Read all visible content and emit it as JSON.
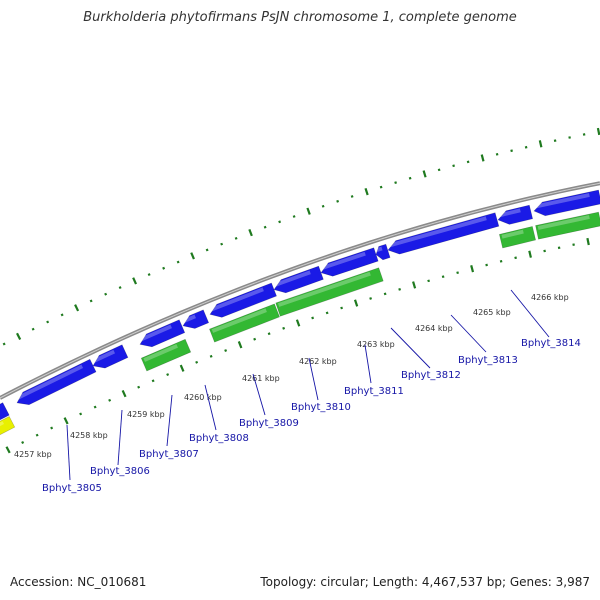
{
  "title": "Burkholderia phytofirmans PsJN chromosome 1, complete genome",
  "footer": {
    "accession": "Accession: NC_010681",
    "topology": "Topology: circular; Length: 4,467,537 bp; Genes: 3,987"
  },
  "scale": {
    "ticks": [
      "4257 kbp",
      "4258 kbp",
      "4259 kbp",
      "4260 kbp",
      "4261 kbp",
      "4262 kbp",
      "4263 kbp",
      "4264 kbp",
      "4265 kbp",
      "4266 kbp"
    ]
  },
  "gene_labels": [
    "Bphyt_3805",
    "Bphyt_3806",
    "Bphyt_3807",
    "Bphyt_3808",
    "Bphyt_3809",
    "Bphyt_3810",
    "Bphyt_3811",
    "Bphyt_3812",
    "Bphyt_3813",
    "Bphyt_3814"
  ],
  "colors": {
    "forward_strand": "#1a1ae6",
    "reverse_strand": "#33b833",
    "highlight": "#e8f000",
    "backbone": "#8a8a8a",
    "tick_marks": "#1f7a1f",
    "label_text": "#1515a6"
  }
}
